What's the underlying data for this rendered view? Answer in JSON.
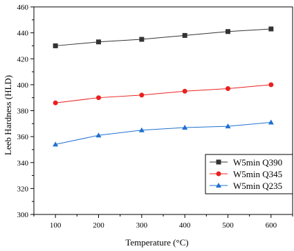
{
  "chart_data": {
    "type": "line",
    "title": "",
    "xlabel": "Temperature (°C)",
    "ylabel": "Leeb Hardness (HLD)",
    "x": [
      100,
      200,
      300,
      400,
      500,
      600
    ],
    "xlim": [
      50,
      650
    ],
    "ylim": [
      300,
      460
    ],
    "x_ticks": [
      100,
      200,
      300,
      400,
      500,
      600
    ],
    "y_ticks": [
      300,
      320,
      340,
      360,
      380,
      400,
      420,
      440,
      460
    ],
    "grid": false,
    "legend_position": "bottom-right",
    "series": [
      {
        "name": "W5min Q390",
        "marker": "square",
        "color": "#333333",
        "values": [
          430,
          433,
          435,
          438,
          441,
          443
        ]
      },
      {
        "name": "W5min Q345",
        "marker": "circle",
        "color": "#e8211f",
        "values": [
          386,
          390,
          392,
          395,
          397,
          400
        ]
      },
      {
        "name": "W5min Q235",
        "marker": "triangle",
        "color": "#1f6fd0",
        "values": [
          354,
          361,
          365,
          367,
          368,
          371
        ]
      }
    ]
  }
}
